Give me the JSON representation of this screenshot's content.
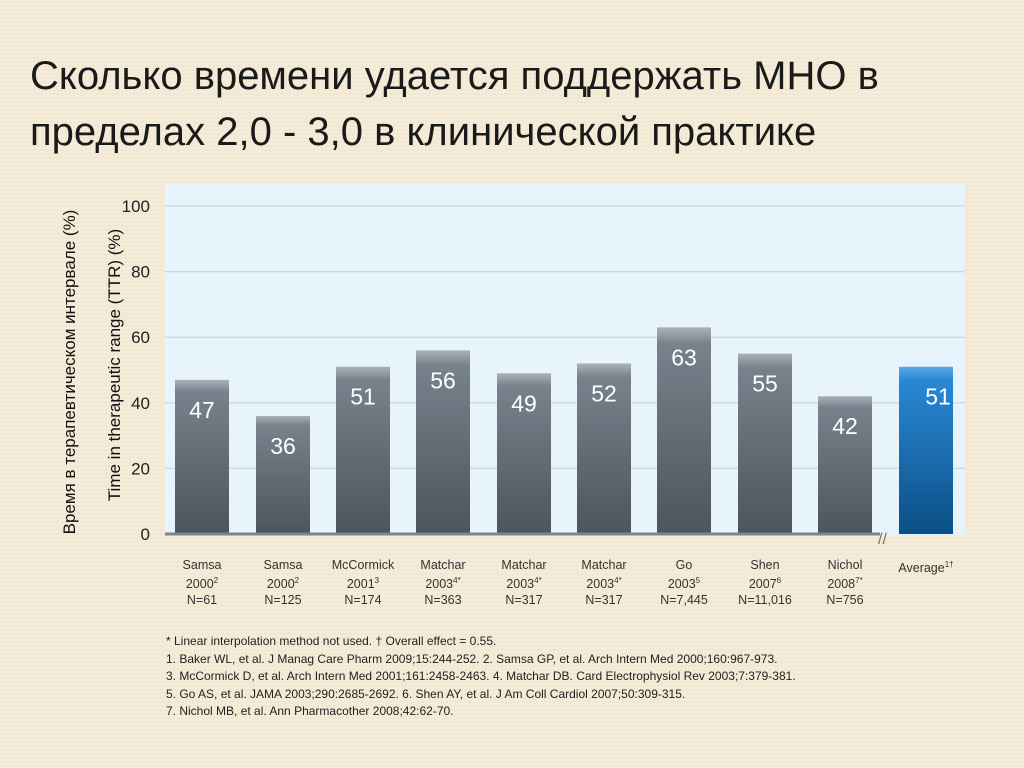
{
  "title": "Сколько времени удается поддержать МНО в пределах 2,0 - 3,0 в клинической практике",
  "colors": {
    "bar": "#5e6770",
    "average_bar": "#1a78c2",
    "plot_bg": "#e8f4fc",
    "background": "#f4ecd8"
  },
  "chart_data": {
    "type": "bar",
    "ylabel": "Time in therapeutic range (TTR) (%)",
    "ylabel_ru": "Время в терапевтическом интервале (%)",
    "ylim": [
      0,
      100
    ],
    "yticks": [
      "0",
      "20",
      "40",
      "60",
      "80",
      "100"
    ],
    "grid": true,
    "axis_break_before_last": true,
    "categories": [
      {
        "name": "Samsa",
        "year": "2000",
        "sup": "2",
        "n": "N=61"
      },
      {
        "name": "Samsa",
        "year": "2000",
        "sup": "2",
        "n": "N=125"
      },
      {
        "name": "McCormick",
        "year": "2001",
        "sup": "3",
        "n": "N=174"
      },
      {
        "name": "Matchar",
        "year": "2003",
        "sup": "4*",
        "n": "N=363"
      },
      {
        "name": "Matchar",
        "year": "2003",
        "sup": "4*",
        "n": "N=317"
      },
      {
        "name": "Matchar",
        "year": "2003",
        "sup": "4*",
        "n": "N=317"
      },
      {
        "name": "Go",
        "year": "2003",
        "sup": "5",
        "n": "N=7,445"
      },
      {
        "name": "Shen",
        "year": "2007",
        "sup": "6",
        "n": "N=11,016"
      },
      {
        "name": "Nichol",
        "year": "2008",
        "sup": "7*",
        "n": "N=756"
      },
      {
        "name": "Average",
        "year": "",
        "sup": "1†",
        "n": ""
      }
    ],
    "values": [
      47,
      36,
      51,
      56,
      49,
      52,
      63,
      55,
      42,
      51
    ],
    "data_labels": [
      "47",
      "36",
      "51",
      "56",
      "49",
      "52",
      "63",
      "55",
      "42",
      "51"
    ]
  },
  "footnotes": [
    "* Linear interpolation method not used.   † Overall effect = 0.55.",
    "1. Baker WL, et al. J Manag Care Pharm 2009;15:244-252. 2. Samsa GP, et al. Arch Intern Med 2000;160:967-973.",
    "3. McCormick D, et al. Arch Intern Med 2001;161:2458-2463. 4. Matchar DB. Card Electrophysiol Rev 2003;7:379-381.",
    "5. Go AS, et al. JAMA 2003;290:2685-2692. 6. Shen AY, et al. J Am Coll Cardiol 2007;50:309-315.",
    "7. Nichol MB, et al. Ann Pharmacother 2008;42:62-70."
  ]
}
